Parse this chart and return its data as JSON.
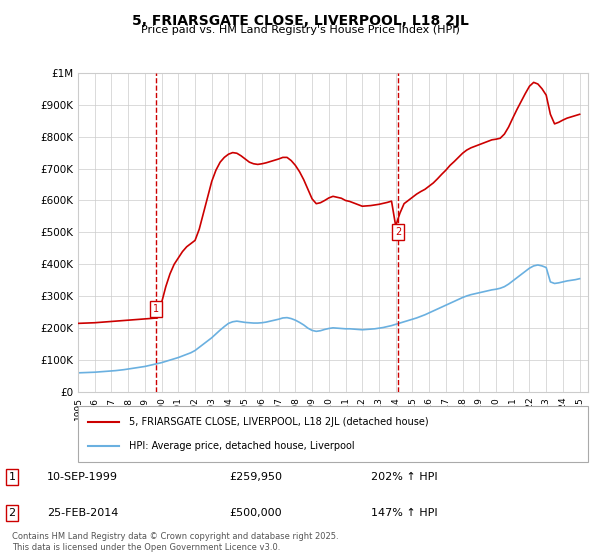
{
  "title": "5, FRIARSGATE CLOSE, LIVERPOOL, L18 2JL",
  "subtitle": "Price paid vs. HM Land Registry's House Price Index (HPI)",
  "ylim": [
    0,
    1000000
  ],
  "yticks": [
    0,
    100000,
    200000,
    300000,
    400000,
    500000,
    600000,
    700000,
    800000,
    900000,
    1000000
  ],
  "ytick_labels": [
    "£0",
    "£100K",
    "£200K",
    "£300K",
    "£400K",
    "£500K",
    "£600K",
    "£700K",
    "£800K",
    "£900K",
    "£1M"
  ],
  "hpi_color": "#6ab0e0",
  "price_color": "#cc0000",
  "vline_color": "#cc0000",
  "grid_color": "#cccccc",
  "background_color": "#ffffff",
  "sale1": {
    "year": 1999.69,
    "price": 259950,
    "label": "1"
  },
  "sale2": {
    "year": 2014.15,
    "price": 500000,
    "label": "2"
  },
  "legend_price": "5, FRIARSGATE CLOSE, LIVERPOOL, L18 2JL (detached house)",
  "legend_hpi": "HPI: Average price, detached house, Liverpool",
  "annotation1": "1     10-SEP-1999          £259,950         202% ↑ HPI",
  "annotation2": "2     25-FEB-2014            £500,000         147% ↑ HPI",
  "footer": "Contains HM Land Registry data © Crown copyright and database right 2025.\nThis data is licensed under the Open Government Licence v3.0.",
  "hpi_data": {
    "years": [
      1995.0,
      1995.25,
      1995.5,
      1995.75,
      1996.0,
      1996.25,
      1996.5,
      1996.75,
      1997.0,
      1997.25,
      1997.5,
      1997.75,
      1998.0,
      1998.25,
      1998.5,
      1998.75,
      1999.0,
      1999.25,
      1999.5,
      1999.75,
      2000.0,
      2000.25,
      2000.5,
      2000.75,
      2001.0,
      2001.25,
      2001.5,
      2001.75,
      2002.0,
      2002.25,
      2002.5,
      2002.75,
      2003.0,
      2003.25,
      2003.5,
      2003.75,
      2004.0,
      2004.25,
      2004.5,
      2004.75,
      2005.0,
      2005.25,
      2005.5,
      2005.75,
      2006.0,
      2006.25,
      2006.5,
      2006.75,
      2007.0,
      2007.25,
      2007.5,
      2007.75,
      2008.0,
      2008.25,
      2008.5,
      2008.75,
      2009.0,
      2009.25,
      2009.5,
      2009.75,
      2010.0,
      2010.25,
      2010.5,
      2010.75,
      2011.0,
      2011.25,
      2011.5,
      2011.75,
      2012.0,
      2012.25,
      2012.5,
      2012.75,
      2013.0,
      2013.25,
      2013.5,
      2013.75,
      2014.0,
      2014.25,
      2014.5,
      2014.75,
      2015.0,
      2015.25,
      2015.5,
      2015.75,
      2016.0,
      2016.25,
      2016.5,
      2016.75,
      2017.0,
      2017.25,
      2017.5,
      2017.75,
      2018.0,
      2018.25,
      2018.5,
      2018.75,
      2019.0,
      2019.25,
      2019.5,
      2019.75,
      2020.0,
      2020.25,
      2020.5,
      2020.75,
      2021.0,
      2021.25,
      2021.5,
      2021.75,
      2022.0,
      2022.25,
      2022.5,
      2022.75,
      2023.0,
      2023.25,
      2023.5,
      2023.75,
      2024.0,
      2024.25,
      2024.5,
      2024.75,
      2025.0
    ],
    "values": [
      60000,
      60500,
      61000,
      61500,
      62000,
      63000,
      64000,
      65000,
      66000,
      67000,
      68500,
      70000,
      72000,
      74000,
      76000,
      78000,
      80000,
      83000,
      86000,
      89000,
      92000,
      96000,
      100000,
      104000,
      108000,
      113000,
      118000,
      123000,
      130000,
      140000,
      150000,
      160000,
      170000,
      182000,
      194000,
      205000,
      215000,
      220000,
      222000,
      220000,
      218000,
      217000,
      216000,
      216000,
      217000,
      219000,
      222000,
      225000,
      228000,
      232000,
      233000,
      230000,
      225000,
      218000,
      210000,
      200000,
      193000,
      190000,
      192000,
      196000,
      199000,
      201000,
      200000,
      199000,
      198000,
      198000,
      197000,
      196000,
      195000,
      196000,
      197000,
      198000,
      200000,
      202000,
      205000,
      208000,
      212000,
      216000,
      220000,
      224000,
      228000,
      232000,
      237000,
      242000,
      248000,
      254000,
      260000,
      266000,
      272000,
      278000,
      284000,
      290000,
      296000,
      301000,
      305000,
      308000,
      311000,
      314000,
      317000,
      320000,
      322000,
      325000,
      330000,
      338000,
      348000,
      358000,
      368000,
      378000,
      388000,
      395000,
      398000,
      395000,
      390000,
      345000,
      340000,
      342000,
      345000,
      348000,
      350000,
      352000,
      355000
    ]
  },
  "price_data": {
    "years": [
      1995.0,
      1995.25,
      1995.5,
      1995.75,
      1996.0,
      1996.25,
      1996.5,
      1996.75,
      1997.0,
      1997.25,
      1997.5,
      1997.75,
      1998.0,
      1998.25,
      1998.5,
      1998.75,
      1999.0,
      1999.25,
      1999.5,
      1999.75,
      2000.0,
      2000.25,
      2000.5,
      2000.75,
      2001.0,
      2001.25,
      2001.5,
      2001.75,
      2002.0,
      2002.25,
      2002.5,
      2002.75,
      2003.0,
      2003.25,
      2003.5,
      2003.75,
      2004.0,
      2004.25,
      2004.5,
      2004.75,
      2005.0,
      2005.25,
      2005.5,
      2005.75,
      2006.0,
      2006.25,
      2006.5,
      2006.75,
      2007.0,
      2007.25,
      2007.5,
      2007.75,
      2008.0,
      2008.25,
      2008.5,
      2008.75,
      2009.0,
      2009.25,
      2009.5,
      2009.75,
      2010.0,
      2010.25,
      2010.5,
      2010.75,
      2011.0,
      2011.25,
      2011.5,
      2011.75,
      2012.0,
      2012.25,
      2012.5,
      2012.75,
      2013.0,
      2013.25,
      2013.5,
      2013.75,
      2014.0,
      2014.25,
      2014.5,
      2014.75,
      2015.0,
      2015.25,
      2015.5,
      2015.75,
      2016.0,
      2016.25,
      2016.5,
      2016.75,
      2017.0,
      2017.25,
      2017.5,
      2017.75,
      2018.0,
      2018.25,
      2018.5,
      2018.75,
      2019.0,
      2019.25,
      2019.5,
      2019.75,
      2020.0,
      2020.25,
      2020.5,
      2020.75,
      2021.0,
      2021.25,
      2021.5,
      2021.75,
      2022.0,
      2022.25,
      2022.5,
      2022.75,
      2023.0,
      2023.25,
      2023.5,
      2023.75,
      2024.0,
      2024.25,
      2024.5,
      2024.75,
      2025.0
    ],
    "values": [
      215000,
      215500,
      216000,
      216500,
      217000,
      218000,
      219000,
      220000,
      221000,
      222000,
      223000,
      224000,
      225000,
      226000,
      227000,
      228000,
      229000,
      230000,
      231000,
      232000,
      280000,
      330000,
      370000,
      400000,
      420000,
      440000,
      455000,
      465000,
      475000,
      510000,
      560000,
      610000,
      660000,
      695000,
      720000,
      735000,
      745000,
      750000,
      748000,
      740000,
      730000,
      720000,
      715000,
      713000,
      715000,
      718000,
      722000,
      726000,
      730000,
      735000,
      735000,
      725000,
      710000,
      690000,
      665000,
      635000,
      605000,
      590000,
      593000,
      600000,
      608000,
      613000,
      610000,
      607000,
      600000,
      597000,
      592000,
      587000,
      582000,
      583000,
      584000,
      586000,
      588000,
      591000,
      594000,
      598000,
      520000,
      560000,
      590000,
      600000,
      610000,
      620000,
      628000,
      635000,
      645000,
      655000,
      668000,
      682000,
      695000,
      710000,
      722000,
      735000,
      748000,
      758000,
      765000,
      770000,
      775000,
      780000,
      785000,
      790000,
      792000,
      795000,
      808000,
      830000,
      858000,
      885000,
      910000,
      935000,
      958000,
      970000,
      965000,
      950000,
      930000,
      870000,
      840000,
      845000,
      852000,
      858000,
      862000,
      866000,
      870000
    ]
  }
}
